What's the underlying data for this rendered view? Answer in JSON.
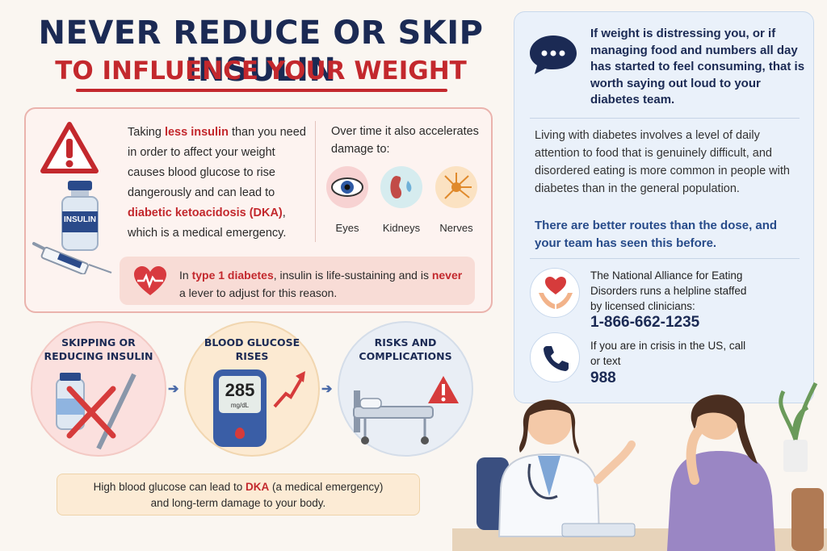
{
  "title": {
    "line1": "NEVER REDUCE OR SKIP INSULIN",
    "line2": "TO INFLUENCE YOUR WEIGHT"
  },
  "warning": {
    "text_a": "Taking ",
    "text_red1": "less insulin",
    "text_b": " than you need in order to affect your weight causes blood glucose to rise dangerously and can lead to ",
    "text_red2": "diabetic ketoacidosis (DKA)",
    "text_c": ", which is a medical emergency.",
    "vial_label": "INSULIN",
    "over_time": "Over time it also accelerates damage to:",
    "organs": [
      "Eyes",
      "Kidneys",
      "Nerves"
    ],
    "t1_a": "In ",
    "t1_red1": "type 1 diabetes",
    "t1_b": ", insulin is life-sustaining and is ",
    "t1_red2": "never",
    "t1_c": " a lever to adjust for this reason."
  },
  "steps": [
    {
      "label1": "SKIPPING OR",
      "label2": "REDUCING INSULIN"
    },
    {
      "label1": "BLOOD GLUCOSE",
      "label2": "RISES",
      "meter_value": "285",
      "meter_unit": "mg/dL"
    },
    {
      "label1": "RISKS AND",
      "label2": "COMPLICATIONS"
    }
  ],
  "bottom_note": {
    "a": "High blood glucose can lead to ",
    "red": "DKA",
    "b": " (a medical emergency)",
    "line2": "and long-term damage to your body."
  },
  "right_panel": {
    "heading": "If weight is distressing you, or if managing food and numbers all day has started to feel consuming, that is worth saying out loud to your diabetes team.",
    "body": "Living with diabetes involves a level of daily attention to food that is genuinely difficult, and disordered eating is more common in people with diabetes than in the general population.",
    "blue": "There are better routes than the dose, and your team has seen this before.",
    "helpline_text": "The National Alliance for Eating Disorders runs a helpline staffed by licensed clinicians:",
    "helpline_phone": "1-866-662-1235",
    "crisis_text": "If you are in crisis in the US, call or text",
    "crisis_phone": "988"
  },
  "colors": {
    "navy": "#1b2a54",
    "red": "#c3282d",
    "blue": "#274b8a"
  }
}
